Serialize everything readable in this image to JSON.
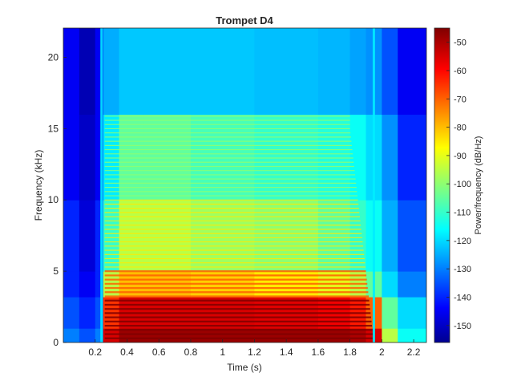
{
  "chart_data": {
    "type": "heatmap",
    "title": "Trompet D4",
    "xlabel": "Time (s)",
    "ylabel": "Frequency (kHz)",
    "colorbar_label": "Power/frequency (dB/Hz)",
    "xlim": [
      0,
      2.28
    ],
    "ylim": [
      0,
      22.05
    ],
    "clim": [
      -156,
      -45
    ],
    "x_ticks": [
      0.2,
      0.4,
      0.6,
      0.8,
      1,
      1.2,
      1.4,
      1.6,
      1.8,
      2,
      2.2
    ],
    "x_tick_labels": [
      "0.2",
      "0.4",
      "0.6",
      "0.8",
      "1",
      "1.2",
      "1.4",
      "1.6",
      "1.8",
      "2",
      "2.2"
    ],
    "y_ticks": [
      0,
      5,
      10,
      15,
      20
    ],
    "y_tick_labels": [
      "0",
      "5",
      "10",
      "15",
      "20"
    ],
    "colorbar_ticks": [
      -50,
      -60,
      -70,
      -80,
      -90,
      -100,
      -110,
      -120,
      -130,
      -140,
      -150
    ],
    "colorbar_tick_labels": [
      "-50",
      "-60",
      "-70",
      "-80",
      "-90",
      "-100",
      "-110",
      "-120",
      "-130",
      "-140",
      "-150"
    ],
    "colormap": "jet",
    "colormap_stops": [
      "#00008f",
      "#0000ff",
      "#00ffff",
      "#ffff00",
      "#ff0000",
      "#800000"
    ],
    "note_onset_s": 0.24,
    "note_release_s": 1.95,
    "fundamental_khz": 0.294,
    "spectrogram": {
      "time_s": [
        0.0,
        0.1,
        0.2,
        0.25,
        0.35,
        0.5,
        0.8,
        1.2,
        1.6,
        1.8,
        1.9,
        2.0,
        2.1,
        2.28
      ],
      "freq_bands_khz": [
        {
          "band": [
            0,
            1
          ],
          "db": [
            -130,
            -135,
            -130,
            -55,
            -48,
            -48,
            -48,
            -48,
            -48,
            -50,
            -55,
            -95,
            -115,
            -140
          ]
        },
        {
          "band": [
            1,
            3.2
          ],
          "db": [
            -135,
            -140,
            -135,
            -65,
            -55,
            -55,
            -55,
            -56,
            -58,
            -62,
            -70,
            -105,
            -120,
            -145
          ]
        },
        {
          "band": [
            3.2,
            5
          ],
          "db": [
            -140,
            -145,
            -140,
            -95,
            -80,
            -80,
            -82,
            -85,
            -90,
            -95,
            -105,
            -120,
            -130,
            -148
          ]
        },
        {
          "band": [
            5,
            10
          ],
          "db": [
            -140,
            -148,
            -140,
            -110,
            -95,
            -95,
            -98,
            -100,
            -105,
            -110,
            -115,
            -125,
            -135,
            -150
          ]
        },
        {
          "band": [
            10,
            16
          ],
          "db": [
            -145,
            -150,
            -145,
            -118,
            -105,
            -105,
            -108,
            -110,
            -112,
            -115,
            -120,
            -128,
            -140,
            -152
          ]
        },
        {
          "band": [
            16,
            22.05
          ],
          "db": [
            -145,
            -152,
            -145,
            -125,
            -122,
            -122,
            -122,
            -123,
            -124,
            -126,
            -128,
            -135,
            -145,
            -153
          ]
        }
      ]
    }
  }
}
